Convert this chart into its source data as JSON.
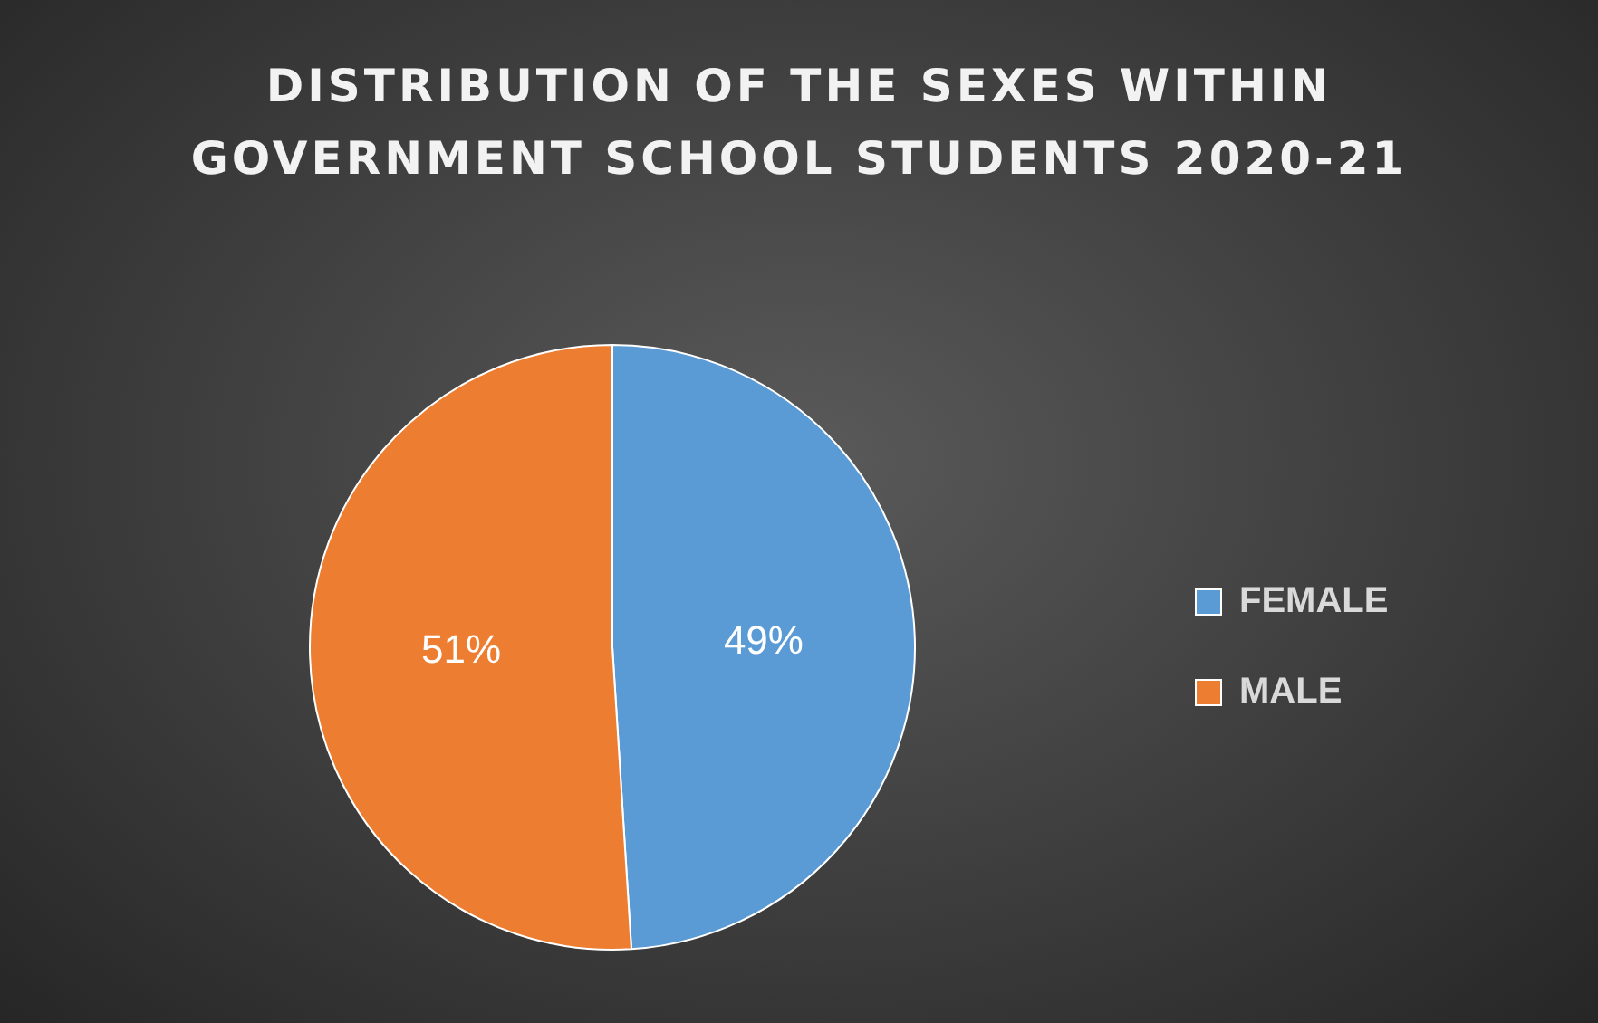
{
  "chart_data": {
    "type": "pie",
    "title": "DISTRIBUTION OF THE SEXES WITHIN GOVERNMENT SCHOOL STUDENTS 2020-21",
    "categories": [
      "FEMALE",
      "MALE"
    ],
    "values": [
      49,
      51
    ],
    "colors": [
      "#5b9bd5",
      "#ed7d31"
    ],
    "value_labels": [
      "49%",
      "51%"
    ],
    "legend": "right"
  }
}
